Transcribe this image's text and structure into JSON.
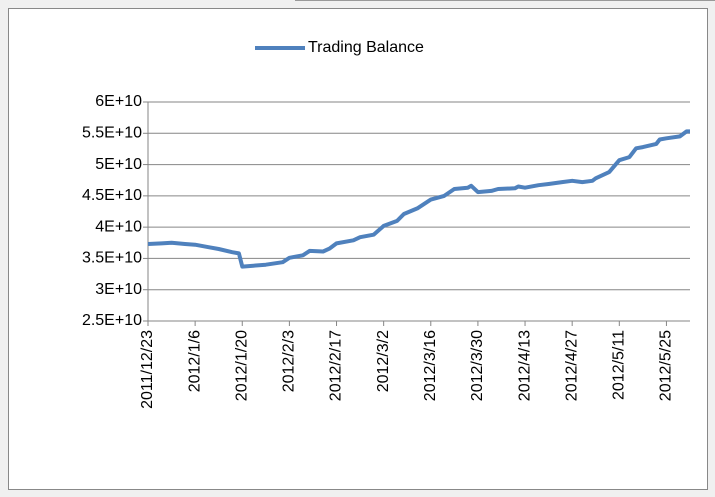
{
  "chart_data": {
    "type": "line",
    "x": [
      "2011/12/23",
      "2011/12/27",
      "2011/12/30",
      "2012/1/3",
      "2012/1/6",
      "2012/1/10",
      "2012/1/13",
      "2012/1/17",
      "2012/1/19",
      "2012/1/20",
      "2012/1/27",
      "2012/2/1",
      "2012/2/3",
      "2012/2/7",
      "2012/2/9",
      "2012/2/13",
      "2012/2/15",
      "2012/2/17",
      "2012/2/22",
      "2012/2/24",
      "2012/2/28",
      "2012/3/2",
      "2012/3/6",
      "2012/3/8",
      "2012/3/12",
      "2012/3/16",
      "2012/3/20",
      "2012/3/23",
      "2012/3/27",
      "2012/3/28",
      "2012/3/30",
      "2012/4/3",
      "2012/4/5",
      "2012/4/10",
      "2012/4/11",
      "2012/4/13",
      "2012/4/17",
      "2012/4/20",
      "2012/4/24",
      "2012/4/27",
      "2012/4/30",
      "2012/5/3",
      "2012/5/4",
      "2012/5/8",
      "2012/5/11",
      "2012/5/14",
      "2012/5/16",
      "2012/5/18",
      "2012/5/22",
      "2012/5/23",
      "2012/5/25",
      "2012/5/29",
      "2012/5/31",
      "2012/6/1"
    ],
    "series": [
      {
        "name": "Trading Balance",
        "color": "#4f81bd",
        "values": [
          37300000000,
          37400000000,
          37500000000,
          37300000000,
          37200000000,
          36800000000,
          36500000000,
          36000000000,
          35800000000,
          33700000000,
          34000000000,
          34400000000,
          35100000000,
          35500000000,
          36200000000,
          36100000000,
          36600000000,
          37400000000,
          37900000000,
          38400000000,
          38800000000,
          40200000000,
          41000000000,
          42100000000,
          43000000000,
          44400000000,
          45000000000,
          46100000000,
          46300000000,
          46600000000,
          45600000000,
          45800000000,
          46100000000,
          46200000000,
          46500000000,
          46300000000,
          46700000000,
          46900000000,
          47200000000,
          47400000000,
          47200000000,
          47400000000,
          47800000000,
          48800000000,
          50700000000,
          51200000000,
          52600000000,
          52800000000,
          53300000000,
          54000000000,
          54200000000,
          54500000000,
          55300000000,
          55300000000
        ]
      }
    ],
    "xlim": [
      "2011/12/23",
      "2012/6/1"
    ],
    "xticks": [
      "2011/12/23",
      "2012/1/6",
      "2012/1/20",
      "2012/2/3",
      "2012/2/17",
      "2012/3/2",
      "2012/3/16",
      "2012/3/30",
      "2012/4/13",
      "2012/4/27",
      "2012/5/11",
      "2012/5/25"
    ],
    "ylim": [
      25000000000,
      60000000000
    ],
    "yticks": [
      {
        "value": 25000000000,
        "label": "2.5E+10"
      },
      {
        "value": 30000000000,
        "label": "3E+10"
      },
      {
        "value": 35000000000,
        "label": "3.5E+10"
      },
      {
        "value": 40000000000,
        "label": "4E+10"
      },
      {
        "value": 45000000000,
        "label": "4.5E+10"
      },
      {
        "value": 50000000000,
        "label": "5E+10"
      },
      {
        "value": 55000000000,
        "label": "5.5E+10"
      },
      {
        "value": 60000000000,
        "label": "6E+10"
      }
    ],
    "grid": true,
    "legend": "top"
  }
}
